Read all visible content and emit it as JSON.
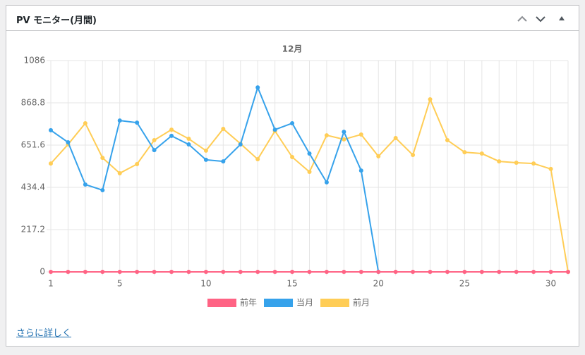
{
  "widget": {
    "title": "PV モニター(月間)",
    "link": "さらに詳しく"
  },
  "chart_data": {
    "type": "line",
    "title": "12月",
    "x": [
      1,
      2,
      3,
      4,
      5,
      6,
      7,
      8,
      9,
      10,
      11,
      12,
      13,
      14,
      15,
      16,
      17,
      18,
      19,
      20,
      21,
      22,
      23,
      24,
      25,
      26,
      27,
      28,
      29,
      30,
      31
    ],
    "xlim": [
      1,
      31
    ],
    "xticks": [
      1,
      5,
      10,
      15,
      20,
      25,
      30
    ],
    "ylim": [
      0,
      1086
    ],
    "yticks": [
      0,
      217.2,
      434.4,
      651.6,
      868.8,
      1086
    ],
    "grid": true,
    "legend": "bottom",
    "series": [
      {
        "name": "前年",
        "color": "#ff6384",
        "values": [
          0,
          0,
          0,
          0,
          0,
          0,
          0,
          0,
          0,
          0,
          0,
          0,
          0,
          0,
          0,
          0,
          0,
          0,
          0,
          0,
          0,
          0,
          0,
          0,
          0,
          0,
          0,
          0,
          0,
          0,
          0
        ]
      },
      {
        "name": "当月",
        "color": "#36a2eb",
        "values": [
          728,
          666,
          449,
          420,
          778,
          767,
          626,
          699,
          655,
          576,
          568,
          655,
          948,
          731,
          764,
          608,
          460,
          720,
          521,
          0,
          null,
          null,
          null,
          null,
          null,
          null,
          null,
          null,
          null,
          null,
          null
        ]
      },
      {
        "name": "前月",
        "color": "#ffcd56",
        "values": [
          557,
          655,
          764,
          586,
          507,
          554,
          677,
          731,
          684,
          623,
          735,
          659,
          579,
          724,
          590,
          514,
          702,
          681,
          706,
          594,
          688,
          601,
          887,
          677,
          615,
          608,
          568,
          561,
          557,
          529,
          0
        ]
      }
    ]
  }
}
